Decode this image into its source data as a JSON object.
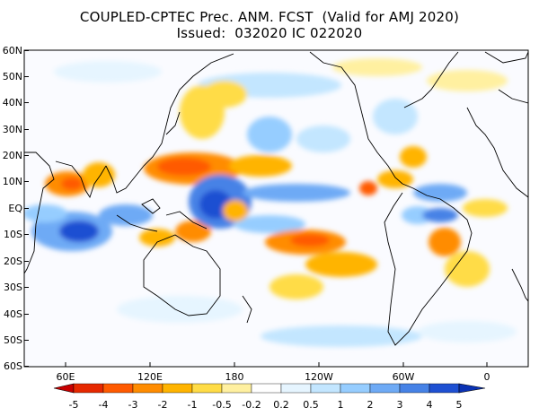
{
  "title_line1": "COUPLED-CPTEC Prec. ANM. FCST  (Valid for AMJ 2020)",
  "title_line2": "Issued:  032020 IC 022020",
  "lat_labels": [
    "60N",
    "50N",
    "40N",
    "30N",
    "20N",
    "10N",
    "EQ",
    "10S",
    "20S",
    "30S",
    "40S",
    "50S",
    "60S"
  ],
  "lon_labels": [
    "60E",
    "120E",
    "180",
    "120W",
    "60W",
    "0"
  ],
  "colorbar": {
    "labels": [
      "-5",
      "-4",
      "-3",
      "-2",
      "-1",
      "-0.5",
      "-0.2",
      "0.2",
      "0.5",
      "1",
      "2",
      "3",
      "4",
      "5"
    ],
    "colors": [
      "#c80000",
      "#e62800",
      "#ff5a00",
      "#ff8c00",
      "#ffb400",
      "#ffdc46",
      "#fff0a0",
      "#ffffff",
      "#e6f5ff",
      "#c3e6ff",
      "#96cdff",
      "#6eaaf5",
      "#4682e6",
      "#1e50d2",
      "#0a32b4"
    ]
  },
  "colors": {
    "positive_accent": "#4682e6",
    "negative_accent": "#ff8c00"
  }
}
